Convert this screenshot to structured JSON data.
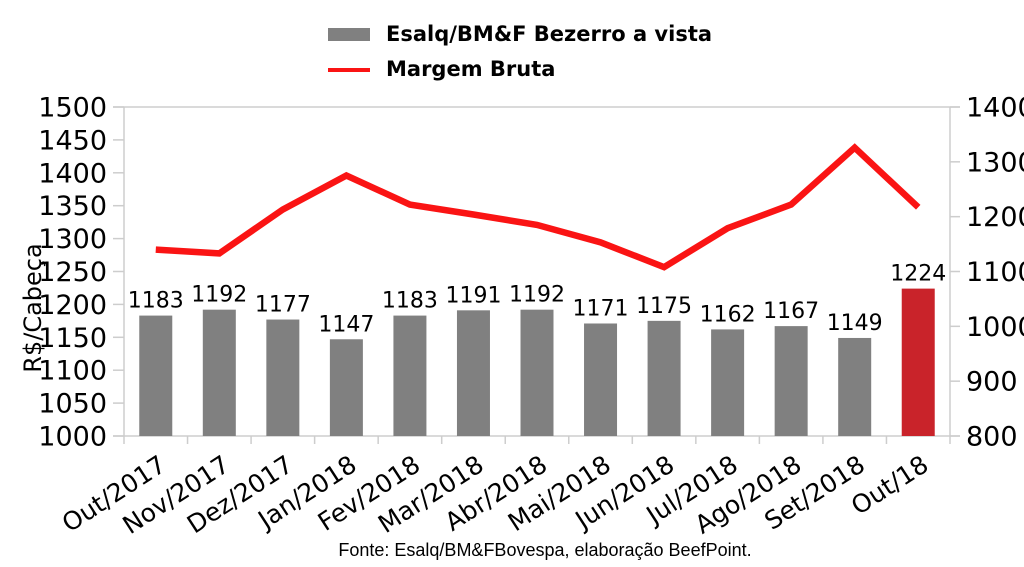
{
  "legend": {
    "items": [
      {
        "label": "Esalq/BM&F Bezerro a vista",
        "swatch": "bar",
        "color": "#808080"
      },
      {
        "label": "Margem Bruta",
        "swatch": "line",
        "color": "#fa1414"
      }
    ]
  },
  "footer": {
    "source_text": "Fonte: Esalq/BM&FBovespa, elaboração BeefPoint."
  },
  "chart_data": {
    "type": "bar+line combo",
    "categories": [
      "Out/2017",
      "Nov/2017",
      "Dez/2017",
      "Jan/2018",
      "Fev/2018",
      "Mar/2018",
      "Abr/2018",
      "Mai/2018",
      "Jun/2018",
      "Jul/2018",
      "Ago/2018",
      "Set/2018",
      "Out/18"
    ],
    "series": [
      {
        "name": "Esalq/BM&F Bezerro a vista",
        "type": "bar",
        "axis": "left",
        "color": "#808080",
        "highlight_color": "#c9232a",
        "highlight_index": 12,
        "values": [
          1183,
          1192,
          1177,
          1147,
          1183,
          1191,
          1192,
          1171,
          1175,
          1162,
          1167,
          1149,
          1224
        ]
      },
      {
        "name": "Margem Bruta",
        "type": "line",
        "axis": "right",
        "color": "#fa1414",
        "values": [
          1140,
          1133,
          1213,
          1275,
          1222,
          1204,
          1185,
          1153,
          1108,
          1179,
          1222,
          1326,
          1217
        ]
      }
    ],
    "title": "",
    "ylabel_left": "R$/Cabeça",
    "ylabel_right": "",
    "left_axis": {
      "min": 1000,
      "max": 1500,
      "step": 50
    },
    "right_axis": {
      "min": 800,
      "max": 1400,
      "step": 100
    },
    "bar_value_labels": true,
    "grid": false,
    "legend_position": "top",
    "frame_color": "#cdcdcd"
  }
}
